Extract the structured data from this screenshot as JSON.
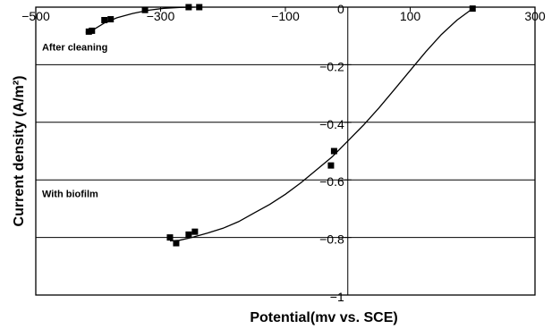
{
  "chart_data": {
    "type": "scatter",
    "title": "",
    "xlabel": "Potential(mv vs. SCE)",
    "ylabel": "Current density (A/m²)",
    "xlim": [
      -500,
      300
    ],
    "ylim": [
      -1,
      0
    ],
    "grid": "horizontal",
    "x_ticks": [
      -500,
      -300,
      -100,
      100,
      300
    ],
    "x_tick_labels": [
      "−500",
      "−300",
      "−100",
      "100",
      "300"
    ],
    "y_ticks": [
      0,
      -0.2,
      -0.4,
      -0.6,
      -0.8,
      -1
    ],
    "y_tick_labels": [
      "0",
      "−0.2",
      "−0.4",
      "−0.6",
      "−0.8",
      "−1"
    ],
    "annotations": [
      {
        "text": "After cleaning",
        "x": -490,
        "y": -0.15
      },
      {
        "text": "With biofilm",
        "x": -490,
        "y": -0.66
      }
    ],
    "series": [
      {
        "points": [
          {
            "x": -415,
            "y": -0.085
          },
          {
            "x": -410,
            "y": -0.082
          },
          {
            "x": -390,
            "y": -0.045
          },
          {
            "x": -380,
            "y": -0.042
          },
          {
            "x": -325,
            "y": -0.01
          },
          {
            "x": -255,
            "y": 0
          },
          {
            "x": -238,
            "y": 0
          }
        ],
        "curve": [
          [
            -420,
            -0.088
          ],
          [
            -405,
            -0.075
          ],
          [
            -390,
            -0.055
          ],
          [
            -370,
            -0.037
          ],
          [
            -345,
            -0.022
          ],
          [
            -320,
            -0.011
          ],
          [
            -295,
            -0.004
          ],
          [
            -270,
            -0.001
          ],
          [
            -245,
            0
          ]
        ]
      },
      {
        "points": [
          {
            "x": -285,
            "y": -0.8
          },
          {
            "x": -275,
            "y": -0.82
          },
          {
            "x": -255,
            "y": -0.79
          },
          {
            "x": -245,
            "y": -0.78
          },
          {
            "x": -27,
            "y": -0.55
          },
          {
            "x": -22,
            "y": -0.5
          },
          {
            "x": 200,
            "y": -0.005
          }
        ],
        "curve": [
          [
            -285,
            -0.812
          ],
          [
            -270,
            -0.81
          ],
          [
            -250,
            -0.8
          ],
          [
            -225,
            -0.785
          ],
          [
            -200,
            -0.768
          ],
          [
            -175,
            -0.745
          ],
          [
            -150,
            -0.715
          ],
          [
            -125,
            -0.685
          ],
          [
            -100,
            -0.65
          ],
          [
            -75,
            -0.61
          ],
          [
            -50,
            -0.565
          ],
          [
            -25,
            -0.52
          ],
          [
            0,
            -0.465
          ],
          [
            25,
            -0.41
          ],
          [
            50,
            -0.35
          ],
          [
            75,
            -0.285
          ],
          [
            100,
            -0.22
          ],
          [
            125,
            -0.155
          ],
          [
            150,
            -0.095
          ],
          [
            175,
            -0.045
          ],
          [
            200,
            -0.005
          ]
        ]
      }
    ]
  }
}
